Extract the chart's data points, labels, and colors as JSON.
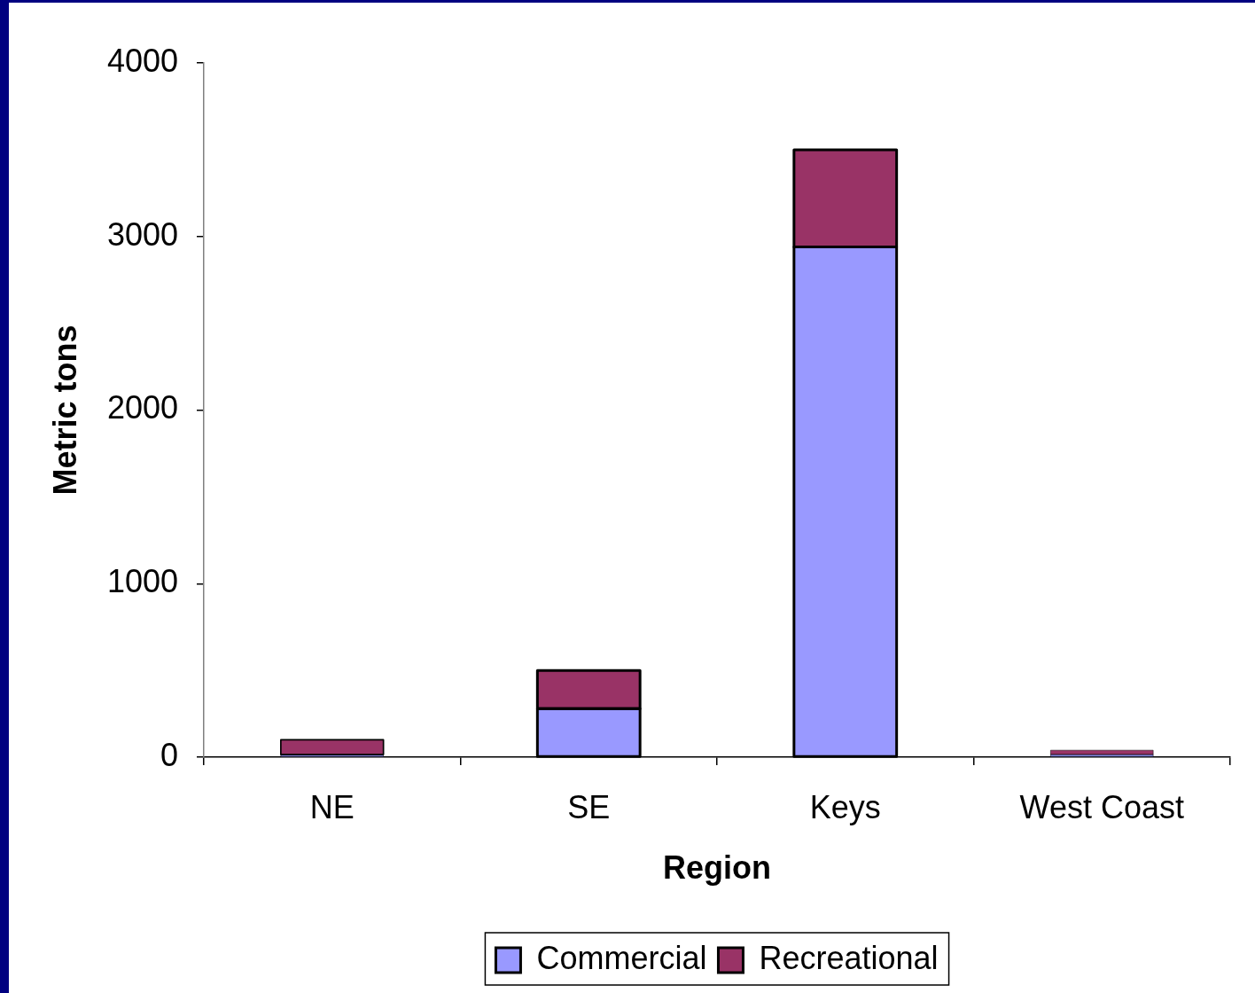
{
  "chart_data": {
    "type": "bar",
    "xlabel": "Region",
    "ylabel": "Metric tons",
    "categories": [
      "NE",
      "SE",
      "Keys",
      "West Coast"
    ],
    "series": [
      {
        "name": "Commercial",
        "color": "#9999ff",
        "values": [
          15,
          280,
          2940,
          15
        ]
      },
      {
        "name": "Recreational",
        "color": "#993366",
        "values": [
          85,
          220,
          560,
          25
        ]
      }
    ],
    "stacked": true,
    "ylim": [
      0,
      4000
    ],
    "yticks": [
      0,
      1000,
      2000,
      3000,
      4000
    ],
    "grid": false,
    "legend": "bottom"
  }
}
